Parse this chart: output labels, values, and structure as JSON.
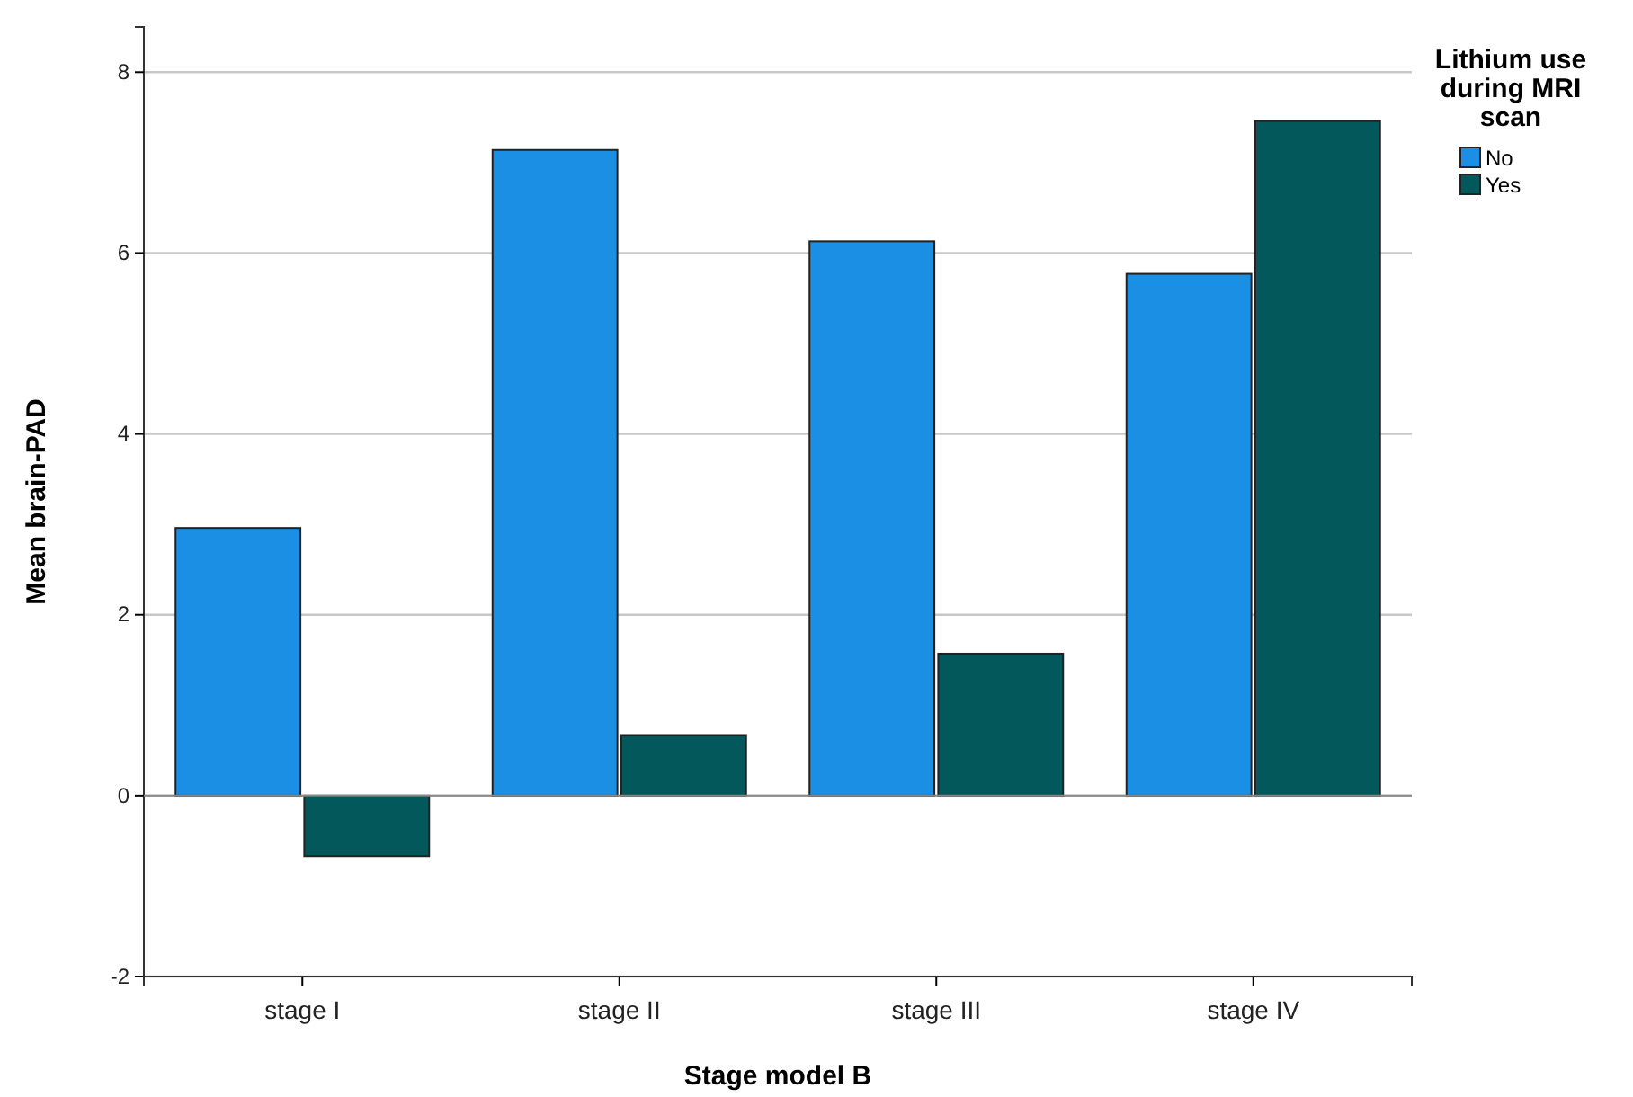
{
  "chart_data": {
    "type": "bar",
    "xlabel": "Stage model B",
    "ylabel": "Mean brain-PAD",
    "legend_title": "Lithium use during MRI scan",
    "categories": [
      "stage I",
      "stage II",
      "stage III",
      "stage IV"
    ],
    "series": [
      {
        "name": "No",
        "color": "#1a8fe3",
        "values": [
          2.96,
          7.14,
          6.13,
          5.77
        ]
      },
      {
        "name": "Yes",
        "color": "#02585a",
        "values": [
          -0.67,
          0.67,
          1.57,
          7.46
        ]
      }
    ],
    "ylim": [
      -2,
      8.5
    ],
    "yticks": [
      -2,
      0,
      2,
      4,
      6,
      8
    ],
    "grid": "y",
    "legend": "top right"
  }
}
